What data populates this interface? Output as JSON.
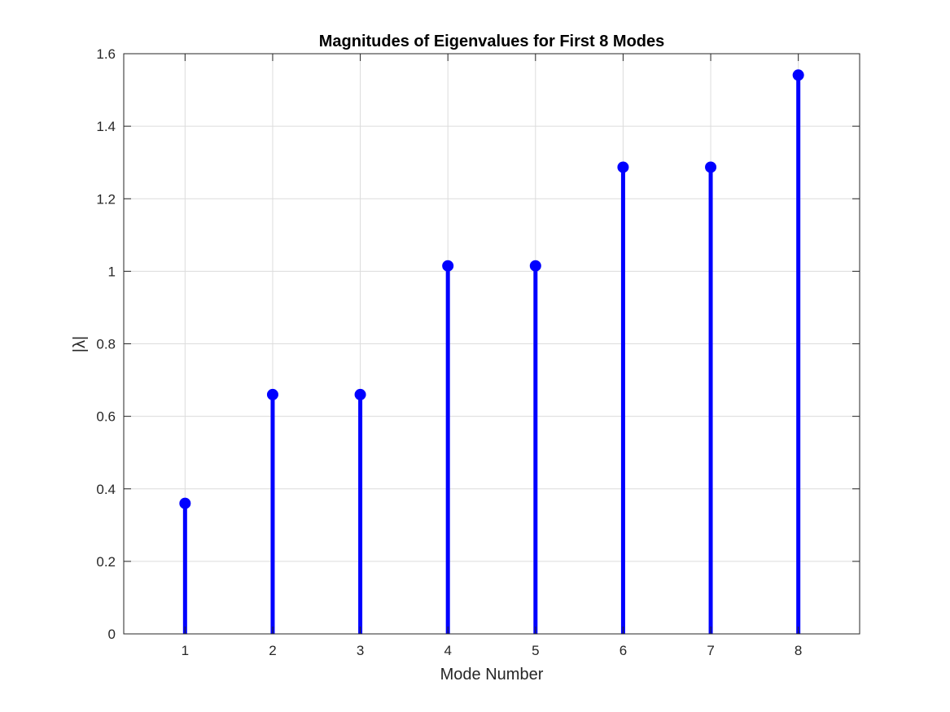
{
  "chart_data": {
    "type": "stem",
    "title": "Magnitudes of Eigenvalues for First 8 Modes",
    "xlabel": "Mode Number",
    "ylabel": "|λ|",
    "x": [
      1,
      2,
      3,
      4,
      5,
      6,
      7,
      8
    ],
    "values": [
      0.36,
      0.66,
      0.66,
      1.015,
      1.015,
      1.287,
      1.287,
      1.541
    ],
    "xlim": [
      0.3,
      8.7
    ],
    "ylim": [
      0,
      1.6
    ],
    "xticks": [
      "1",
      "2",
      "3",
      "4",
      "5",
      "6",
      "7",
      "8"
    ],
    "yticks": [
      "0",
      "0.2",
      "0.4",
      "0.6",
      "0.8",
      "1",
      "1.2",
      "1.4",
      "1.6"
    ],
    "grid": true,
    "legend": "none",
    "colors": {
      "stem": "#0000ff",
      "grid": "#dcdcdc",
      "axes": "#262626"
    }
  }
}
